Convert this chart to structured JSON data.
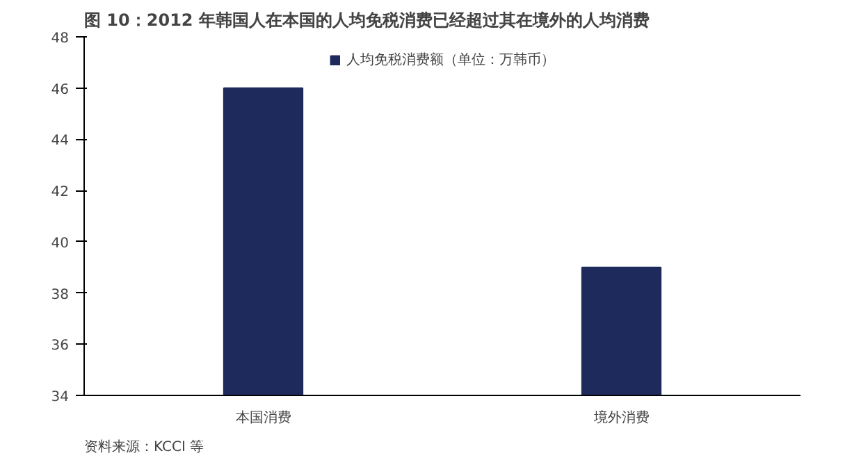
{
  "chart_data": {
    "type": "bar",
    "title": "图 10：2012 年韩国人在本国的人均免税消费已经超过其在境外的人均消费",
    "categories": [
      "本国消费",
      "境外消费"
    ],
    "series": [
      {
        "name": "人均免税消费额（单位：万韩币）",
        "color": "#1f2a5c",
        "values": [
          46,
          39
        ]
      }
    ],
    "ylim": [
      34,
      48
    ],
    "yticks": [
      34,
      36,
      38,
      40,
      42,
      44,
      46,
      48
    ],
    "grid": false,
    "legend": "top",
    "annotations": [
      "资料来源：KCCI 等"
    ]
  }
}
